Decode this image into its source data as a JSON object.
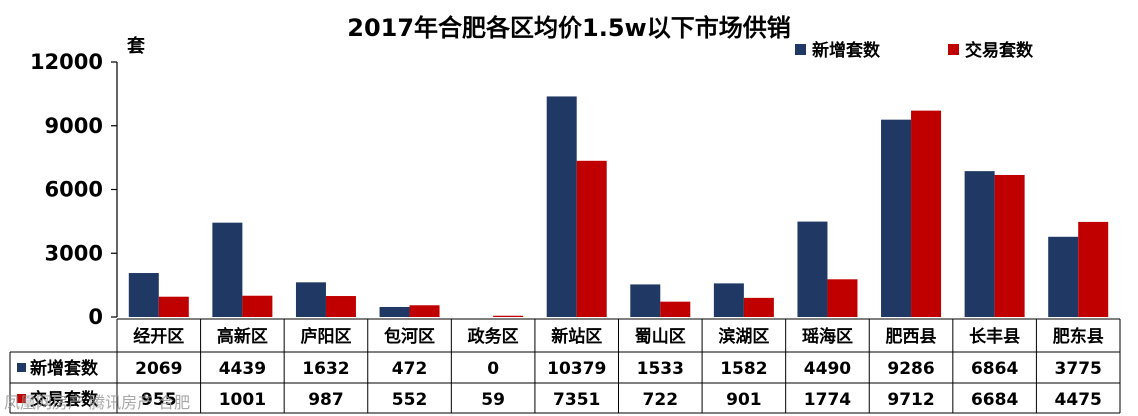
{
  "chart_data": {
    "type": "bar",
    "title": "2017年合肥各区均价1.5w以下市场供销",
    "unit_label": "套",
    "categories": [
      "经开区",
      "高新区",
      "庐阳区",
      "包河区",
      "政务区",
      "新站区",
      "蜀山区",
      "滨湖区",
      "瑶海区",
      "肥西县",
      "长丰县",
      "肥东县"
    ],
    "series": [
      {
        "name": "新增套数",
        "color": "#1f3864",
        "values": [
          2069,
          4439,
          1632,
          472,
          0,
          10379,
          1533,
          1582,
          4490,
          9286,
          6864,
          3775
        ],
        "labels": [
          "2069",
          "4439",
          "1632",
          "472",
          "0",
          "10379",
          "1533",
          "1582",
          "4490",
          "9286",
          "6864",
          "3775"
        ]
      },
      {
        "name": "交易套数",
        "color": "#c00000",
        "values": [
          955,
          1001,
          987,
          552,
          59,
          7351,
          722,
          901,
          1774,
          9712,
          6684,
          4475
        ],
        "labels": [
          "955",
          "1001",
          "987",
          "552",
          "59",
          "7351",
          "722",
          "901",
          "1774",
          "9712",
          "6684",
          "4475"
        ]
      }
    ],
    "ylim": [
      0,
      12000
    ],
    "yticks": [
      "0",
      "3000",
      "6000",
      "9000",
      "12000"
    ],
    "legend_position": "top-right",
    "grid": false,
    "watermark": "凤凰网房产 腾讯房产 合肥"
  }
}
